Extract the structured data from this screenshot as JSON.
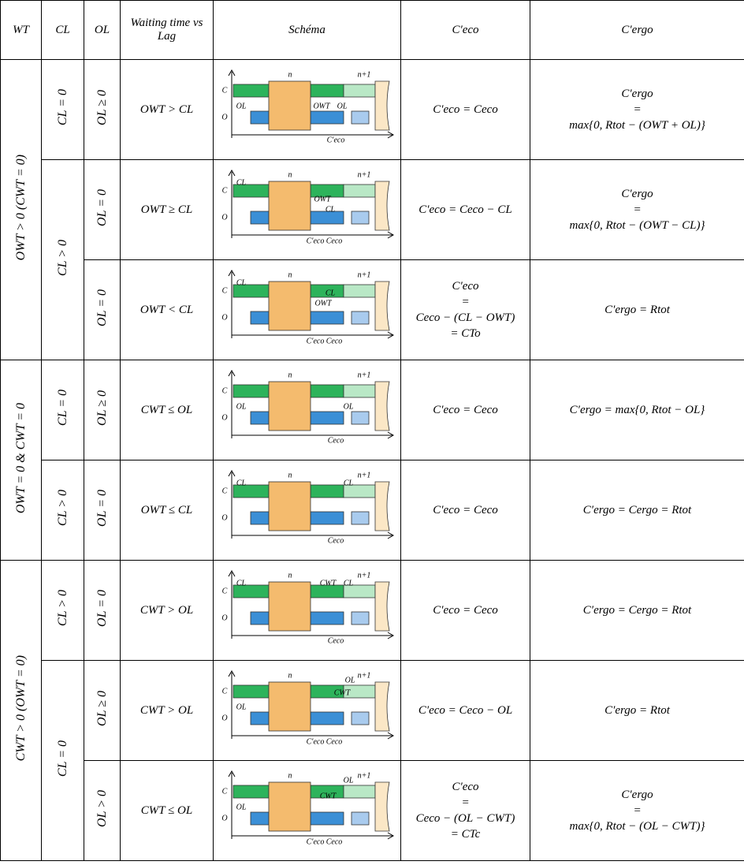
{
  "header": [
    "WT",
    "CL",
    "OL",
    "Waiting time vs Lag",
    "Schéma",
    "C′eco",
    "C′ergo"
  ],
  "wt_groups": [
    {
      "label": "OWT > 0 (CWT = 0)",
      "cl_groups": [
        {
          "label": "CL = 0",
          "rows": [
            {
              "ol": "OL ≥ 0",
              "wait": "OWT > CL",
              "schema": {
                "n": "n",
                "n1": "n+1",
                "c": "C",
                "o": "O",
                "labels": [
                  "OL",
                  "OWT",
                  "OL",
                  "C′eco"
                ]
              },
              "eco": [
                "C′eco = Ceco"
              ],
              "ergo": [
                "C′ergo",
                "=",
                "max{0, Rtot − (OWT + OL)}"
              ]
            }
          ]
        },
        {
          "label": "CL > 0",
          "rows": [
            {
              "ol": "OL = 0",
              "wait": "OWT ≥ CL",
              "schema": {
                "n": "n",
                "n1": "n+1",
                "c": "C",
                "o": "O",
                "labels": [
                  "CL",
                  "OWT",
                  "CL",
                  "C′eco",
                  "Ceco"
                ]
              },
              "eco": [
                "C′eco = Ceco − CL"
              ],
              "ergo": [
                "C′ergo",
                "=",
                "max{0, Rtot − (OWT − CL)}"
              ]
            },
            {
              "ol": "OL = 0",
              "wait": "OWT < CL",
              "schema": {
                "n": "n",
                "n1": "n+1",
                "c": "C",
                "o": "O",
                "labels": [
                  "CL",
                  "CL",
                  "OWT",
                  "C′eco",
                  "Ceco"
                ]
              },
              "eco": [
                "C′eco",
                "=",
                "Ceco − (CL − OWT)",
                "= CTo"
              ],
              "ergo": [
                "C′ergo = Rtot"
              ]
            }
          ]
        }
      ]
    },
    {
      "label": "OWT = 0 & CWT = 0",
      "cl_groups": [
        {
          "label": "CL = 0",
          "rows": [
            {
              "ol": "OL ≥ 0",
              "wait": "CWT ≤ OL",
              "schema": {
                "n": "n",
                "n1": "n+1",
                "c": "C",
                "o": "O",
                "labels": [
                  "OL",
                  "OL",
                  "Ceco"
                ]
              },
              "eco": [
                "C′eco = Ceco"
              ],
              "ergo": [
                "C′ergo = max{0, Rtot − OL}"
              ]
            }
          ]
        },
        {
          "label": "CL > 0",
          "rows": [
            {
              "ol": "OL = 0",
              "wait": "OWT ≤ CL",
              "schema": {
                "n": "n",
                "n1": "n+1",
                "c": "C",
                "o": "O",
                "labels": [
                  "CL",
                  "CL",
                  "Ceco"
                ]
              },
              "eco": [
                "C′eco = Ceco"
              ],
              "ergo": [
                "C′ergo = Cergo = Rtot"
              ]
            }
          ]
        }
      ]
    },
    {
      "label": "CWT > 0 (OWT = 0)",
      "cl_groups": [
        {
          "label": "CL > 0",
          "rows": [
            {
              "ol": "OL = 0",
              "wait": "CWT > OL",
              "schema": {
                "n": "n",
                "n1": "n+1",
                "c": "C",
                "o": "O",
                "labels": [
                  "CL",
                  "CWT",
                  "CL",
                  "Ceco"
                ]
              },
              "eco": [
                "C′eco = Ceco"
              ],
              "ergo": [
                "C′ergo = Cergo = Rtot"
              ]
            }
          ]
        },
        {
          "label": "CL = 0",
          "rows": [
            {
              "ol": "OL ≥ 0",
              "wait": "CWT > OL",
              "schema": {
                "n": "n",
                "n1": "n+1",
                "c": "C",
                "o": "O",
                "labels": [
                  "OL",
                  "OL",
                  "CWT",
                  "C′eco",
                  "Ceco"
                ]
              },
              "eco": [
                "C′eco = Ceco − OL"
              ],
              "ergo": [
                "C′ergo = Rtot"
              ]
            },
            {
              "ol": "OL > 0",
              "wait": "CWT ≤ OL",
              "schema": {
                "n": "n",
                "n1": "n+1",
                "c": "C",
                "o": "O",
                "labels": [
                  "OL",
                  "OL",
                  "CWT",
                  "C′eco",
                  "Ceco"
                ]
              },
              "eco": [
                "C′eco",
                "=",
                "Ceco − (OL − CWT)",
                "= CTc"
              ],
              "ergo": [
                "C′ergo",
                "=",
                "max{0, Rtot − (OL − CWT)}"
              ]
            }
          ]
        }
      ]
    }
  ]
}
